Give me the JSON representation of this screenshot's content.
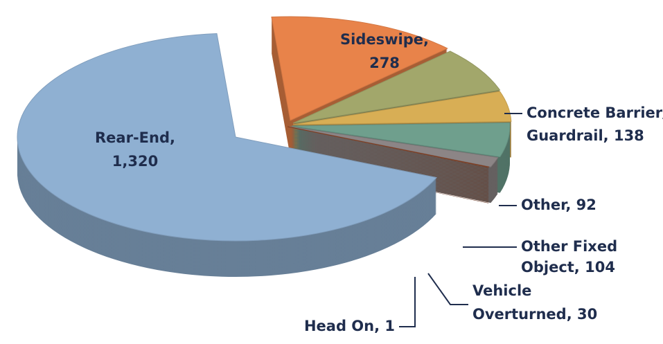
{
  "chart_data": {
    "type": "pie",
    "labels": [
      [
        "Rear-End,",
        "1,320"
      ],
      [
        "Sideswipe,",
        "278"
      ],
      [
        "Concrete Barrier/",
        "Guardrail, 138"
      ],
      [
        "Other, 92"
      ],
      [
        "Other Fixed",
        "Object, 104"
      ],
      [
        "Vehicle",
        "Overturned, 30"
      ],
      [
        "Head On, 1"
      ]
    ],
    "values": [
      1320,
      278,
      138,
      92,
      104,
      30,
      1
    ],
    "colors": [
      "#8fb0d2",
      "#e8834a",
      "#a2a76b",
      "#d8ae55",
      "#6f9f8d",
      "#8c8586",
      "#8e3f1d"
    ]
  }
}
